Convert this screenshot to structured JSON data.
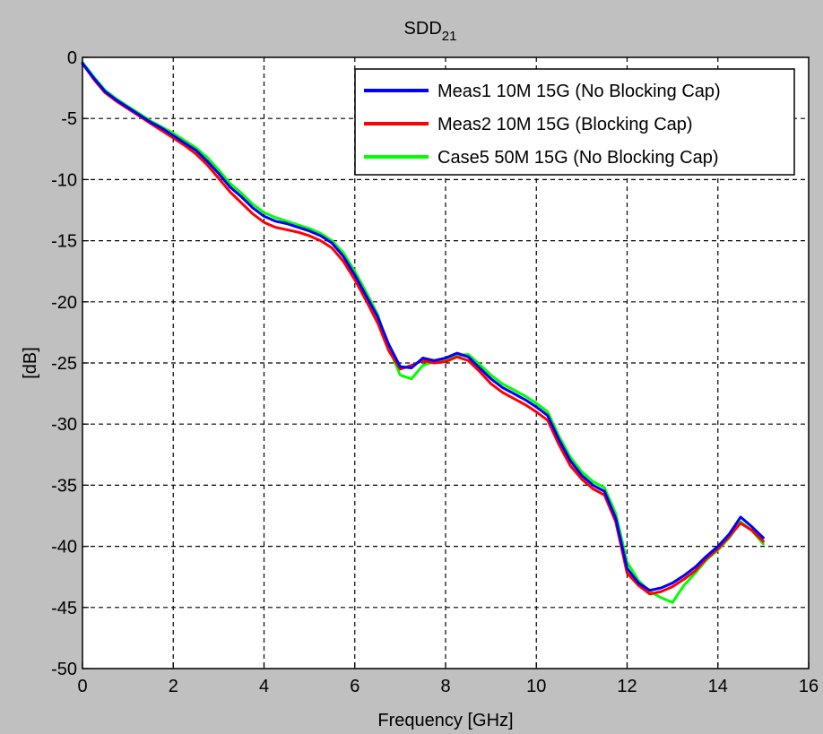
{
  "chart_data": {
    "type": "line",
    "title": {
      "main": "SDD",
      "subscript": "21"
    },
    "xlabel": "Frequency [GHz]",
    "ylabel": "[dB]",
    "xlim": [
      0,
      16
    ],
    "ylim": [
      -50,
      0
    ],
    "xticks": [
      0,
      2,
      4,
      6,
      8,
      10,
      12,
      14,
      16
    ],
    "yticks": [
      0,
      -5,
      -10,
      -15,
      -20,
      -25,
      -30,
      -35,
      -40,
      -45,
      -50
    ],
    "grid": true,
    "legend_position": "top-right",
    "series": [
      {
        "name": "Meas1 10M 15G (No Blocking Cap)",
        "color": "#0000ff",
        "x": [
          0,
          0.25,
          0.5,
          0.75,
          1,
          1.25,
          1.5,
          1.75,
          2,
          2.25,
          2.5,
          2.75,
          3,
          3.25,
          3.5,
          3.75,
          4,
          4.25,
          4.5,
          4.75,
          5,
          5.25,
          5.5,
          5.75,
          6,
          6.25,
          6.5,
          6.75,
          7,
          7.25,
          7.5,
          7.75,
          8,
          8.25,
          8.5,
          8.75,
          9,
          9.25,
          9.5,
          9.75,
          10,
          10.25,
          10.5,
          10.75,
          11,
          11.25,
          11.5,
          11.75,
          12,
          12.25,
          12.5,
          12.75,
          13,
          13.25,
          13.5,
          13.75,
          14,
          14.25,
          14.5,
          14.75,
          15
        ],
        "y": [
          -0.5,
          -1.7,
          -2.8,
          -3.5,
          -4.1,
          -4.7,
          -5.3,
          -5.8,
          -6.4,
          -7.0,
          -7.6,
          -8.5,
          -9.5,
          -10.6,
          -11.4,
          -12.3,
          -13.0,
          -13.4,
          -13.6,
          -13.9,
          -14.2,
          -14.6,
          -15.2,
          -16.3,
          -17.8,
          -19.5,
          -21.2,
          -23.5,
          -25.3,
          -25.4,
          -24.6,
          -24.8,
          -24.6,
          -24.2,
          -24.5,
          -25.4,
          -26.3,
          -27.0,
          -27.5,
          -28.0,
          -28.6,
          -29.3,
          -31.3,
          -33.0,
          -34.2,
          -35.0,
          -35.5,
          -37.7,
          -41.8,
          -43.0,
          -43.6,
          -43.4,
          -43.0,
          -42.4,
          -41.7,
          -40.8,
          -40.0,
          -39.0,
          -37.6,
          -38.4,
          -39.3
        ]
      },
      {
        "name": "Meas2 10M 15G (Blocking Cap)",
        "color": "#ff0000",
        "x": [
          0,
          0.25,
          0.5,
          0.75,
          1,
          1.25,
          1.5,
          1.75,
          2,
          2.25,
          2.5,
          2.75,
          3,
          3.25,
          3.5,
          3.75,
          4,
          4.25,
          4.5,
          4.75,
          5,
          5.25,
          5.5,
          5.75,
          6,
          6.25,
          6.5,
          6.75,
          7,
          7.25,
          7.5,
          7.75,
          8,
          8.25,
          8.5,
          8.75,
          9,
          9.25,
          9.5,
          9.75,
          10,
          10.25,
          10.5,
          10.75,
          11,
          11.25,
          11.5,
          11.75,
          12,
          12.25,
          12.5,
          12.75,
          13,
          13.25,
          13.5,
          13.75,
          14,
          14.25,
          14.5,
          14.75,
          15
        ],
        "y": [
          -0.5,
          -1.8,
          -2.9,
          -3.6,
          -4.2,
          -4.8,
          -5.4,
          -6.0,
          -6.6,
          -7.2,
          -7.9,
          -8.8,
          -9.9,
          -11.0,
          -11.9,
          -12.8,
          -13.5,
          -13.9,
          -14.1,
          -14.3,
          -14.6,
          -15.0,
          -15.6,
          -16.7,
          -18.2,
          -19.9,
          -21.7,
          -24.0,
          -25.5,
          -25.2,
          -24.8,
          -25.0,
          -24.9,
          -24.5,
          -24.8,
          -25.7,
          -26.7,
          -27.4,
          -27.9,
          -28.4,
          -29.0,
          -29.7,
          -31.7,
          -33.4,
          -34.5,
          -35.3,
          -35.8,
          -38.0,
          -42.2,
          -43.2,
          -43.9,
          -43.7,
          -43.3,
          -42.7,
          -42.0,
          -41.0,
          -40.2,
          -39.2,
          -38.1,
          -38.7,
          -39.6
        ]
      },
      {
        "name": "Case5 50M 15G (No Blocking Cap)",
        "color": "#00ff00",
        "x": [
          0,
          0.25,
          0.5,
          0.75,
          1,
          1.25,
          1.5,
          1.75,
          2,
          2.25,
          2.5,
          2.75,
          3,
          3.25,
          3.5,
          3.75,
          4,
          4.25,
          4.5,
          4.75,
          5,
          5.25,
          5.5,
          5.75,
          6,
          6.25,
          6.5,
          6.75,
          7,
          7.25,
          7.5,
          7.75,
          8,
          8.25,
          8.5,
          8.75,
          9,
          9.25,
          9.5,
          9.75,
          10,
          10.25,
          10.5,
          10.75,
          11,
          11.25,
          11.5,
          11.75,
          12,
          12.25,
          12.5,
          12.75,
          13,
          13.25,
          13.5,
          13.75,
          14,
          14.25,
          14.5,
          14.75,
          15
        ],
        "y": [
          -0.4,
          -1.6,
          -2.7,
          -3.4,
          -4.0,
          -4.6,
          -5.2,
          -5.7,
          -6.2,
          -6.8,
          -7.4,
          -8.2,
          -9.2,
          -10.3,
          -11.1,
          -12.0,
          -12.7,
          -13.1,
          -13.4,
          -13.7,
          -14.0,
          -14.4,
          -15.0,
          -16.0,
          -17.5,
          -19.2,
          -21.0,
          -23.8,
          -26.0,
          -26.3,
          -25.2,
          -24.9,
          -24.7,
          -24.4,
          -24.3,
          -25.1,
          -26.0,
          -26.7,
          -27.2,
          -27.7,
          -28.3,
          -29.0,
          -31.0,
          -32.7,
          -33.9,
          -34.7,
          -35.2,
          -37.3,
          -41.3,
          -42.8,
          -43.7,
          -44.2,
          -44.6,
          -43.2,
          -42.2,
          -41.1,
          -40.3,
          -39.3,
          -38.0,
          -38.7,
          -39.8
        ]
      }
    ]
  }
}
